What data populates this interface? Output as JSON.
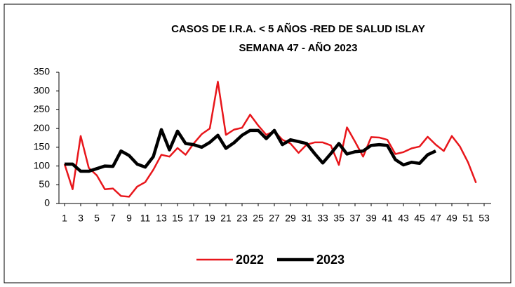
{
  "chart_data": {
    "type": "line",
    "title": "CASOS DE I.R.A. < 5 AÑOS -RED DE SALUD ISLAY",
    "subtitle": "SEMANA 47 -  AÑO 2023",
    "x": [
      1,
      2,
      3,
      4,
      5,
      6,
      7,
      8,
      9,
      10,
      11,
      12,
      13,
      14,
      15,
      16,
      17,
      18,
      19,
      20,
      21,
      22,
      23,
      24,
      25,
      26,
      27,
      28,
      29,
      30,
      31,
      32,
      33,
      34,
      35,
      36,
      37,
      38,
      39,
      40,
      41,
      42,
      43,
      44,
      45,
      46,
      47,
      48,
      49,
      50,
      51,
      52
    ],
    "series": [
      {
        "name": "2022",
        "color": "#e8161b",
        "width": 2.5,
        "values": [
          105,
          38,
          180,
          95,
          75,
          38,
          40,
          20,
          18,
          45,
          57,
          90,
          130,
          125,
          148,
          130,
          160,
          185,
          200,
          325,
          183,
          197,
          202,
          237,
          208,
          183,
          193,
          170,
          160,
          135,
          157,
          163,
          163,
          155,
          103,
          203,
          165,
          125,
          177,
          176,
          170,
          132,
          137,
          147,
          152,
          178,
          157,
          140,
          180,
          152,
          110,
          55
        ]
      },
      {
        "name": "2023",
        "color": "#000000",
        "width": 4.5,
        "values": [
          105,
          105,
          86,
          86,
          93,
          100,
          99,
          140,
          128,
          105,
          97,
          125,
          197,
          143,
          193,
          160,
          157,
          150,
          163,
          182,
          147,
          162,
          182,
          195,
          195,
          173,
          195,
          157,
          170,
          165,
          160,
          133,
          108,
          133,
          160,
          132,
          138,
          140,
          155,
          157,
          155,
          117,
          103,
          110,
          107,
          130,
          140,
          null,
          null,
          null,
          null,
          null
        ]
      }
    ],
    "xlim": [
      1,
      53
    ],
    "xticks": [
      1,
      3,
      5,
      7,
      9,
      11,
      13,
      15,
      17,
      19,
      21,
      23,
      25,
      27,
      29,
      31,
      33,
      35,
      37,
      39,
      41,
      43,
      45,
      47,
      49,
      51,
      53
    ],
    "ylim": [
      0,
      350
    ],
    "yticks": [
      0,
      50,
      100,
      150,
      200,
      250,
      300,
      350
    ],
    "grid": false,
    "legend": "bottom"
  }
}
